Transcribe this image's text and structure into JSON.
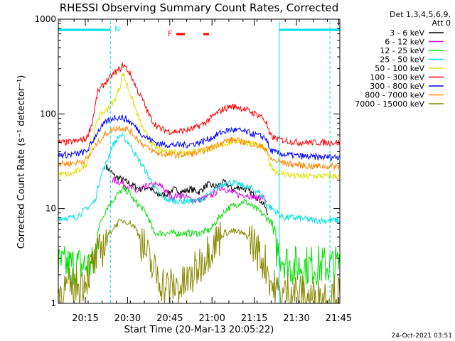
{
  "chart_data": {
    "type": "line",
    "title": "RHESSI Observing Summary Count Rates, Corrected",
    "xlabel": "Start Time (20-Mar-13 20:05:22)",
    "ylabel": "Corrected Count Rate (s⁻¹ detector⁻¹)",
    "yscale": "log",
    "ylim": [
      1,
      1000
    ],
    "y_ticks": [
      "1",
      "10",
      "100",
      "1000"
    ],
    "xlim_minutes": [
      0,
      100
    ],
    "x_ticks": [
      {
        "label": "20:15",
        "t": 9.6
      },
      {
        "label": "20:30",
        "t": 24.6
      },
      {
        "label": "20:45",
        "t": 39.6
      },
      {
        "label": "21:00",
        "t": 54.6
      },
      {
        "label": "21:15",
        "t": 69.6
      },
      {
        "label": "21:30",
        "t": 84.6
      },
      {
        "label": "21:45",
        "t": 99.6
      }
    ],
    "legend_header": [
      "Det 1,3,4,5,6,9,",
      "Att 0"
    ],
    "legend_position": "right",
    "flare_flag": "F",
    "night_flag": "N",
    "timestamp": "24-Oct-2021 03:51",
    "series": [
      {
        "name": "3 - 6 keV",
        "color": "#000000",
        "values": [
          [
            17,
            28
          ],
          [
            20,
            22
          ],
          [
            23,
            20
          ],
          [
            26,
            18
          ],
          [
            29,
            16
          ],
          [
            32,
            17
          ],
          [
            35,
            14
          ],
          [
            38,
            14
          ],
          [
            41,
            16
          ],
          [
            44,
            15
          ],
          [
            47,
            16
          ],
          [
            50,
            15
          ],
          [
            53,
            18
          ],
          [
            56,
            17
          ],
          [
            59,
            19
          ],
          [
            62,
            16
          ],
          [
            65,
            17
          ],
          [
            68,
            15
          ],
          [
            71,
            13
          ],
          [
            73,
            11
          ],
          [
            74.5,
            8.5
          ]
        ]
      },
      {
        "name": "6 - 12 keV",
        "color": "#e000e0",
        "values": [
          [
            19,
            20
          ],
          [
            22,
            19
          ],
          [
            25,
            17
          ],
          [
            28,
            15
          ],
          [
            31,
            17
          ],
          [
            34,
            18
          ],
          [
            37,
            17
          ],
          [
            40,
            13
          ],
          [
            43,
            14
          ],
          [
            46,
            13
          ],
          [
            49,
            12
          ],
          [
            52,
            13
          ],
          [
            55,
            14
          ],
          [
            58,
            17
          ],
          [
            61,
            15
          ],
          [
            64,
            14
          ],
          [
            67,
            14
          ],
          [
            70,
            13
          ],
          [
            73,
            13
          ],
          [
            74,
            12
          ]
        ]
      },
      {
        "name": "12 - 25 keV",
        "color": "#00dd00",
        "values": [
          [
            0,
            2.5
          ],
          [
            9,
            2.5
          ],
          [
            13,
            2.5
          ],
          [
            14,
            6
          ],
          [
            17,
            10
          ],
          [
            20,
            13
          ],
          [
            22,
            15
          ],
          [
            23,
            16
          ],
          [
            25,
            15
          ],
          [
            27,
            12
          ],
          [
            30,
            10
          ],
          [
            32,
            8
          ],
          [
            34,
            5.5
          ],
          [
            38,
            5.5
          ],
          [
            42,
            5.5
          ],
          [
            46,
            5.5
          ],
          [
            50,
            5.5
          ],
          [
            54,
            6
          ],
          [
            57,
            8
          ],
          [
            60,
            10
          ],
          [
            63,
            11
          ],
          [
            66,
            12
          ],
          [
            68,
            11
          ],
          [
            70,
            10
          ],
          [
            72,
            9
          ],
          [
            74,
            8
          ],
          [
            76,
            7
          ],
          [
            77,
            4
          ],
          [
            82,
            2.5
          ],
          [
            100,
            2.5
          ]
        ]
      },
      {
        "name": "25 - 50 keV",
        "color": "#00e0e0",
        "values": [
          [
            0,
            8
          ],
          [
            6,
            8
          ],
          [
            10,
            10
          ],
          [
            13,
            12
          ],
          [
            15,
            22
          ],
          [
            17,
            30
          ],
          [
            19,
            45
          ],
          [
            22,
            60
          ],
          [
            25,
            50
          ],
          [
            28,
            35
          ],
          [
            31,
            25
          ],
          [
            34,
            17
          ],
          [
            37,
            13
          ],
          [
            41,
            12
          ],
          [
            45,
            12
          ],
          [
            49,
            12
          ],
          [
            52,
            13
          ],
          [
            55,
            15
          ],
          [
            58,
            18
          ],
          [
            61,
            19
          ],
          [
            64,
            18
          ],
          [
            67,
            17
          ],
          [
            69,
            16
          ],
          [
            71,
            15
          ],
          [
            73,
            13
          ],
          [
            74,
            11
          ],
          [
            76,
            10
          ],
          [
            78,
            9
          ],
          [
            80,
            8
          ],
          [
            85,
            8
          ],
          [
            90,
            7.5
          ],
          [
            95,
            7.5
          ],
          [
            100,
            7.5
          ]
        ]
      },
      {
        "name": "50 - 100 keV",
        "color": "#e0e000",
        "values": [
          [
            0,
            23
          ],
          [
            4,
            23
          ],
          [
            7,
            25
          ],
          [
            10,
            30
          ],
          [
            12,
            50
          ],
          [
            14,
            90
          ],
          [
            17,
            110
          ],
          [
            20,
            140
          ],
          [
            22,
            200
          ],
          [
            23,
            270
          ],
          [
            24,
            220
          ],
          [
            26,
            150
          ],
          [
            28,
            100
          ],
          [
            30,
            70
          ],
          [
            32,
            55
          ],
          [
            34,
            45
          ],
          [
            37,
            40
          ],
          [
            40,
            40
          ],
          [
            44,
            40
          ],
          [
            48,
            40
          ],
          [
            52,
            42
          ],
          [
            55,
            44
          ],
          [
            58,
            47
          ],
          [
            61,
            50
          ],
          [
            64,
            52
          ],
          [
            67,
            50
          ],
          [
            70,
            48
          ],
          [
            72,
            45
          ],
          [
            74,
            40
          ],
          [
            75,
            30
          ],
          [
            77,
            25
          ],
          [
            81,
            23
          ],
          [
            85,
            22
          ],
          [
            90,
            22
          ],
          [
            95,
            22
          ],
          [
            100,
            22
          ]
        ]
      },
      {
        "name": "100 - 300 keV",
        "color": "#ff0000",
        "values": [
          [
            0,
            50
          ],
          [
            4,
            50
          ],
          [
            7,
            52
          ],
          [
            10,
            55
          ],
          [
            12,
            80
          ],
          [
            14,
            170
          ],
          [
            17,
            220
          ],
          [
            20,
            270
          ],
          [
            22,
            300
          ],
          [
            23,
            330
          ],
          [
            24,
            310
          ],
          [
            26,
            250
          ],
          [
            28,
            180
          ],
          [
            30,
            140
          ],
          [
            32,
            100
          ],
          [
            34,
            80
          ],
          [
            36,
            70
          ],
          [
            40,
            65
          ],
          [
            44,
            66
          ],
          [
            48,
            70
          ],
          [
            52,
            80
          ],
          [
            55,
            95
          ],
          [
            58,
            110
          ],
          [
            61,
            120
          ],
          [
            64,
            118
          ],
          [
            67,
            110
          ],
          [
            70,
            100
          ],
          [
            72,
            95
          ],
          [
            74,
            80
          ],
          [
            75,
            60
          ],
          [
            77,
            55
          ],
          [
            81,
            52
          ],
          [
            85,
            50
          ],
          [
            90,
            50
          ],
          [
            95,
            50
          ],
          [
            100,
            50
          ]
        ]
      },
      {
        "name": "300 - 800 keV",
        "color": "#0000ff",
        "values": [
          [
            0,
            37
          ],
          [
            4,
            37
          ],
          [
            7,
            38
          ],
          [
            10,
            40
          ],
          [
            12,
            50
          ],
          [
            14,
            65
          ],
          [
            17,
            82
          ],
          [
            20,
            92
          ],
          [
            22,
            92
          ],
          [
            24,
            88
          ],
          [
            26,
            80
          ],
          [
            28,
            70
          ],
          [
            30,
            60
          ],
          [
            32,
            55
          ],
          [
            34,
            51
          ],
          [
            36,
            48
          ],
          [
            40,
            47
          ],
          [
            44,
            47
          ],
          [
            48,
            48
          ],
          [
            52,
            52
          ],
          [
            55,
            57
          ],
          [
            58,
            64
          ],
          [
            61,
            68
          ],
          [
            64,
            67
          ],
          [
            67,
            64
          ],
          [
            70,
            60
          ],
          [
            72,
            58
          ],
          [
            74,
            55
          ],
          [
            75,
            42
          ],
          [
            77,
            39
          ],
          [
            81,
            37
          ],
          [
            85,
            36
          ],
          [
            90,
            35
          ],
          [
            95,
            35
          ],
          [
            100,
            35
          ]
        ]
      },
      {
        "name": "800 - 7000 keV",
        "color": "#ff8800",
        "values": [
          [
            0,
            30
          ],
          [
            4,
            30
          ],
          [
            7,
            31
          ],
          [
            10,
            33
          ],
          [
            12,
            40
          ],
          [
            14,
            50
          ],
          [
            17,
            62
          ],
          [
            20,
            70
          ],
          [
            22,
            72
          ],
          [
            24,
            70
          ],
          [
            26,
            64
          ],
          [
            28,
            55
          ],
          [
            30,
            48
          ],
          [
            32,
            43
          ],
          [
            34,
            40
          ],
          [
            36,
            38
          ],
          [
            40,
            37
          ],
          [
            44,
            37
          ],
          [
            48,
            38
          ],
          [
            52,
            41
          ],
          [
            55,
            45
          ],
          [
            58,
            50
          ],
          [
            61,
            53
          ],
          [
            64,
            52
          ],
          [
            67,
            50
          ],
          [
            70,
            47
          ],
          [
            72,
            45
          ],
          [
            74,
            43
          ],
          [
            75,
            34
          ],
          [
            77,
            32
          ],
          [
            81,
            30
          ],
          [
            85,
            29
          ],
          [
            90,
            28
          ],
          [
            95,
            28
          ],
          [
            100,
            28
          ]
        ]
      },
      {
        "name": "7000 - 15000 keV",
        "color": "#888800",
        "values": [
          [
            0,
            1.3
          ],
          [
            5,
            1.5
          ],
          [
            9,
            1.7
          ],
          [
            13,
            2.8
          ],
          [
            15,
            3.5
          ],
          [
            17,
            4.8
          ],
          [
            19,
            6
          ],
          [
            21,
            7
          ],
          [
            23,
            7.5
          ],
          [
            25,
            7.2
          ],
          [
            27,
            6.5
          ],
          [
            29,
            5
          ],
          [
            31,
            3.5
          ],
          [
            33,
            2.5
          ],
          [
            35,
            2
          ],
          [
            38,
            1.5
          ],
          [
            41,
            1.5
          ],
          [
            44,
            1.5
          ],
          [
            47,
            1.8
          ],
          [
            50,
            2.5
          ],
          [
            53,
            3.5
          ],
          [
            56,
            4.5
          ],
          [
            59,
            5.5
          ],
          [
            62,
            5.8
          ],
          [
            65,
            5.5
          ],
          [
            68,
            5
          ],
          [
            70,
            4
          ],
          [
            72,
            3
          ],
          [
            74,
            2.5
          ],
          [
            76,
            1.5
          ],
          [
            79,
            1.2
          ],
          [
            83,
            1.4
          ],
          [
            87,
            1.2
          ],
          [
            91,
            1.1
          ],
          [
            95,
            1.2
          ],
          [
            100,
            1.2
          ]
        ]
      }
    ]
  }
}
